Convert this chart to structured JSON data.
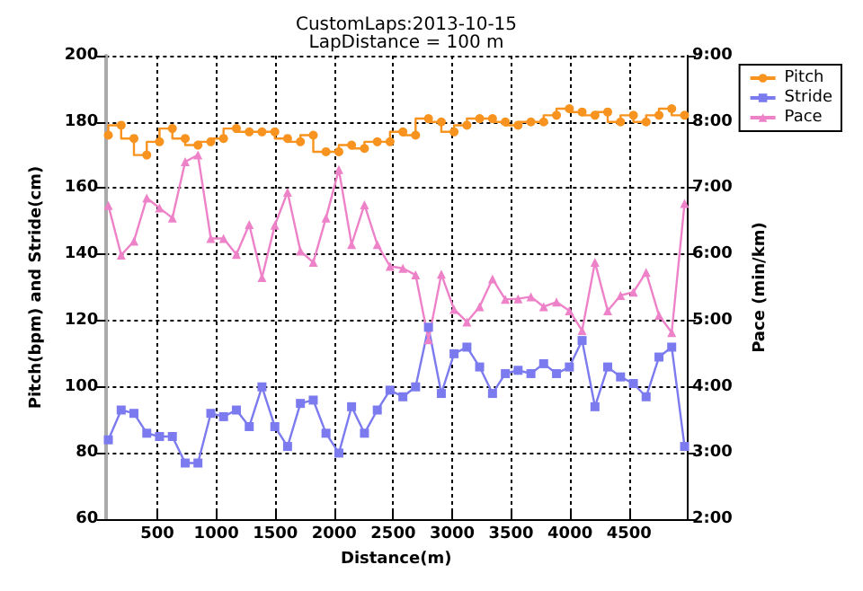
{
  "chart_data": {
    "type": "line",
    "title": "CustomLaps:2013-10-15",
    "subtitle": "LapDistance = 100 m",
    "xlabel": "Distance(m)",
    "ylabel": "Pitch(bpm) and Stride(cm)",
    "y2label": "Pace (min/km)",
    "x": [
      84,
      193,
      301,
      410,
      518,
      627,
      736,
      844,
      953,
      1061,
      1170,
      1279,
      1387,
      1496,
      1604,
      1713,
      1822,
      1930,
      2039,
      2147,
      2256,
      2365,
      2473,
      2582,
      2690,
      2799,
      2908,
      3016,
      3125,
      3233,
      3342,
      3451,
      3559,
      3668,
      3776,
      3885,
      3994,
      4102,
      4211,
      4319,
      4428,
      4537,
      4645,
      4754,
      4862,
      4971
    ],
    "series": [
      {
        "name": "Pitch",
        "type": "step",
        "marker": "circle",
        "color": "#f7931e",
        "values": [
          176,
          179,
          175,
          170,
          174,
          178,
          175,
          173,
          174,
          175,
          178,
          177,
          177,
          177,
          175,
          174,
          176,
          171,
          171,
          173,
          172,
          174,
          174,
          177,
          176,
          181,
          180,
          177,
          179,
          181,
          181,
          180,
          179,
          180,
          180,
          182,
          184,
          183,
          182,
          183,
          180,
          182,
          180,
          182,
          184,
          182
        ]
      },
      {
        "name": "Stride",
        "marker": "square",
        "color": "#7b7bef",
        "values": [
          84,
          93,
          92,
          86,
          85,
          85,
          77,
          77,
          92,
          91,
          93,
          88,
          100,
          88,
          82,
          95,
          96,
          86,
          80,
          94,
          86,
          93,
          99,
          97,
          100,
          118,
          98,
          110,
          112,
          106,
          98,
          104,
          105,
          104,
          107,
          104,
          106,
          114,
          94,
          106,
          103,
          101,
          97,
          109,
          112,
          82
        ]
      },
      {
        "name": "Pace",
        "marker": "triangle",
        "axis": "y2",
        "color": "#ee82c8",
        "values": [
          6.74,
          5.99,
          6.2,
          6.85,
          6.7,
          6.55,
          7.4,
          7.5,
          6.24,
          6.24,
          6.0,
          6.45,
          5.65,
          6.44,
          6.94,
          6.05,
          5.88,
          6.55,
          7.28,
          6.15,
          6.75,
          6.15,
          5.82,
          5.79,
          5.69,
          4.71,
          5.7,
          5.17,
          4.98,
          5.21,
          5.63,
          5.32,
          5.33,
          5.36,
          5.21,
          5.28,
          5.15,
          4.85,
          5.88,
          5.15,
          5.38,
          5.43,
          5.73,
          5.08,
          4.82,
          6.77
        ]
      }
    ],
    "xlim": [
      60,
      4990
    ],
    "xticks": [
      500,
      1000,
      1500,
      2000,
      2500,
      3000,
      3500,
      4000,
      4500
    ],
    "ylim": [
      60,
      200
    ],
    "yticks": [
      60,
      80,
      100,
      120,
      140,
      160,
      180,
      200
    ],
    "y2lim": [
      2,
      9
    ],
    "y2ticks": [
      {
        "value": 2,
        "label": "2:00"
      },
      {
        "value": 3,
        "label": "3:00"
      },
      {
        "value": 4,
        "label": "4:00"
      },
      {
        "value": 5,
        "label": "5:00"
      },
      {
        "value": 6,
        "label": "6:00"
      },
      {
        "value": 7,
        "label": "7:00"
      },
      {
        "value": 8,
        "label": "8:00"
      },
      {
        "value": 9,
        "label": "9:00"
      }
    ],
    "grid": true,
    "legend": "top right"
  }
}
